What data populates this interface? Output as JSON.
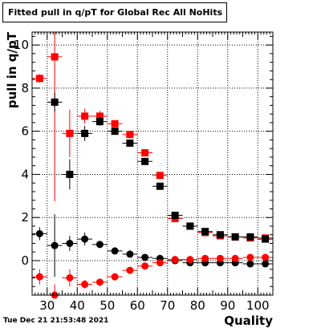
{
  "title": "Fitted pull in q/pT for Global Rec All NoHits",
  "footer_timestamp": "Tue Dec 21 21:53:48 2021",
  "chart_data": {
    "type": "scatter",
    "title": "Fitted pull in q/pT for Global Rec All NoHits",
    "xlabel": "Quality",
    "ylabel": "pull in q/pT",
    "xlim": [
      25,
      105
    ],
    "ylim": [
      -1.6,
      10.6
    ],
    "xticks": [
      30,
      40,
      50,
      60,
      70,
      80,
      90,
      100
    ],
    "yticks": [
      0,
      2,
      4,
      6,
      8,
      10
    ],
    "x": [
      27.5,
      32.5,
      37.5,
      42.5,
      47.5,
      52.5,
      57.5,
      62.5,
      67.5,
      72.5,
      77.5,
      82.5,
      87.5,
      92.5,
      97.5,
      102.5
    ],
    "series": [
      {
        "color": "#ff0000",
        "marker": "square",
        "values": [
          8.45,
          9.45,
          5.9,
          6.7,
          6.7,
          6.35,
          5.85,
          5.0,
          3.95,
          1.95,
          1.6,
          1.3,
          1.15,
          1.1,
          1.05,
          1.05
        ],
        "errors": [
          0.2,
          6.7,
          1.1,
          0.35,
          0.25,
          0.15,
          0.15,
          0.15,
          0.15,
          0.15,
          0.1,
          0.1,
          0.1,
          0.1,
          0.15,
          0.1
        ]
      },
      {
        "color": "#000000",
        "marker": "square",
        "values": [
          null,
          7.35,
          4.0,
          5.9,
          6.45,
          6.0,
          5.45,
          4.6,
          3.45,
          2.1,
          1.6,
          1.35,
          1.2,
          1.1,
          1.1,
          1.0
        ],
        "errors": [
          null,
          0.45,
          0.7,
          0.35,
          0.2,
          0.15,
          0.15,
          0.15,
          0.15,
          0.15,
          0.1,
          0.1,
          0.1,
          0.1,
          0.1,
          0.1
        ]
      },
      {
        "color": "#000000",
        "marker": "circle",
        "values": [
          1.25,
          0.7,
          0.8,
          1.0,
          0.75,
          0.45,
          0.3,
          0.15,
          0.1,
          0.0,
          -0.1,
          -0.1,
          -0.1,
          -0.1,
          -0.15,
          -0.15
        ],
        "errors": [
          0.3,
          1.45,
          0.35,
          0.3,
          0.15,
          0.1,
          0.1,
          0.1,
          0.1,
          0.1,
          0.1,
          0.1,
          0.1,
          0.1,
          0.1,
          0.1
        ]
      },
      {
        "color": "#ff0000",
        "marker": "circle",
        "values": [
          -0.75,
          -1.6,
          -0.8,
          -1.1,
          -1.0,
          -0.75,
          -0.45,
          -0.25,
          -0.1,
          0.05,
          0.05,
          0.1,
          0.1,
          0.1,
          0.15,
          0.15
        ],
        "errors": [
          0.35,
          0.5,
          0.4,
          0.2,
          0.15,
          0.1,
          0.1,
          0.1,
          0.1,
          0.1,
          0.1,
          0.1,
          0.1,
          0.1,
          0.1,
          0.1
        ]
      }
    ]
  }
}
